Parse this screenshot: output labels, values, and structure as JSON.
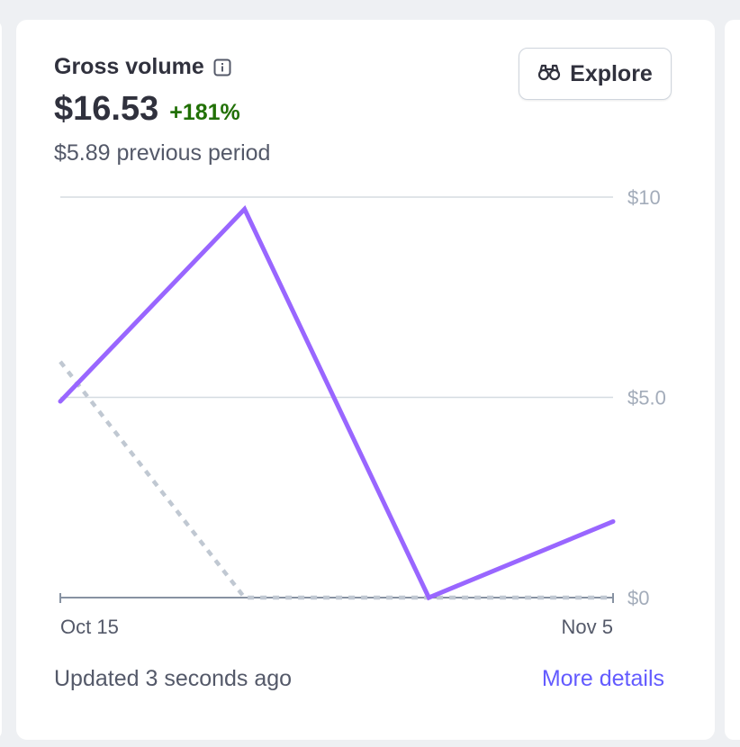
{
  "card": {
    "title": "Gross volume",
    "value": "$16.53",
    "change": "+181%",
    "previous_period": "$5.89 previous period",
    "explore_label": "Explore",
    "updated_text": "Updated 3 seconds ago",
    "more_details_label": "More details"
  },
  "colors": {
    "current_series": "#9966ff",
    "previous_series": "#c0c8d2",
    "positive_change": "#217005",
    "link": "#635bff"
  },
  "chart_data": {
    "type": "line",
    "x_tick_labels": [
      "Oct 15",
      "Nov 5"
    ],
    "y_tick_labels": [
      "$10",
      "$5.0",
      "$0"
    ],
    "y_ticks": [
      10,
      5,
      0
    ],
    "ylim": [
      0,
      10
    ],
    "grid": true,
    "x": [
      0,
      1,
      2,
      3
    ],
    "series": [
      {
        "values": [
          4.9,
          9.7,
          0.0,
          1.9
        ],
        "style": "solid",
        "color": "#9966ff"
      },
      {
        "values": [
          5.89,
          0.0,
          0.0,
          0.0
        ],
        "style": "dotted",
        "color": "#c0c8d2"
      }
    ]
  }
}
